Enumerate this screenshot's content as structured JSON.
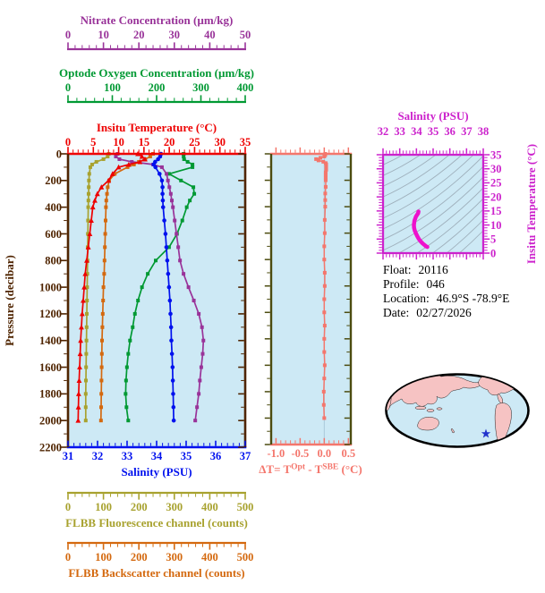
{
  "colors": {
    "page_bg": "#ffffff",
    "plot_bg": "#cde9f5",
    "pressure_axis": "#4f2400",
    "zero_gridline": "#a9c9d9",
    "info_text": "#000000",
    "map_ocean": "#cde9f5",
    "map_land": "#f6c3c3",
    "map_outline": "#000000",
    "marker_star": "#2233cc"
  },
  "info": {
    "lines": [
      {
        "label": "Float:",
        "value": "20116"
      },
      {
        "label": "Profile:",
        "value": "046"
      },
      {
        "label": "Location:",
        "value": "46.9°S  -78.9°E"
      },
      {
        "label": "Date:",
        "value": "02/27/2026"
      }
    ]
  },
  "chart_data": [
    {
      "type": "line",
      "title": "Multi-parameter float profile vs pressure",
      "ylabel": "Pressure (decibar)",
      "ylim": [
        0,
        2200
      ],
      "yticks": [
        0,
        200,
        400,
        600,
        800,
        1000,
        1200,
        1400,
        1600,
        1800,
        2000,
        2200
      ],
      "x_axes": [
        {
          "id": "nitrate",
          "label": "Nitrate Concentration (µm/kg)",
          "color": "#993399",
          "range": [
            0,
            50
          ],
          "ticks": [
            0,
            10,
            20,
            30,
            40,
            50
          ],
          "minor_step": 2
        },
        {
          "id": "oxygen",
          "label": "Optode Oxygen Concentration (µm/kg)",
          "color": "#009933",
          "range": [
            0,
            400
          ],
          "ticks": [
            0,
            100,
            200,
            300,
            400
          ],
          "minor_step": 20
        },
        {
          "id": "temperature",
          "label": "Insitu Temperature (°C)",
          "color": "#ee0000",
          "range": [
            0,
            35
          ],
          "ticks": [
            0,
            5,
            10,
            15,
            20,
            25,
            30,
            35
          ],
          "minor_step": 1
        },
        {
          "id": "salinity",
          "label": "Salinity (PSU)",
          "color": "#0011ee",
          "range": [
            31,
            37
          ],
          "ticks": [
            31,
            32,
            33,
            34,
            35,
            36,
            37
          ],
          "minor_step": 0.2
        },
        {
          "id": "fluorescence",
          "label": "FLBB Fluorescence channel (counts)",
          "color": "#a8a22f",
          "range": [
            0,
            500
          ],
          "ticks": [
            0,
            100,
            200,
            300,
            400,
            500
          ],
          "minor_step": 20
        },
        {
          "id": "backscatter",
          "label": "FLBB Backscatter channel (counts)",
          "color": "#d4690f",
          "range": [
            0,
            500
          ],
          "ticks": [
            0,
            100,
            200,
            300,
            400,
            500
          ],
          "minor_step": 20
        }
      ],
      "pressure": [
        0,
        20,
        40,
        60,
        80,
        100,
        150,
        200,
        250,
        300,
        350,
        400,
        500,
        600,
        700,
        800,
        900,
        1000,
        1100,
        1200,
        1300,
        1400,
        1500,
        1600,
        1700,
        1800,
        1900,
        2000
      ],
      "series": [
        {
          "name": "FLBB Fluorescence channel",
          "axis": "fluorescence",
          "marker": "square",
          "values": [
            115,
            112,
            100,
            80,
            68,
            63,
            60,
            59,
            58.5,
            58,
            57.5,
            57,
            56.5,
            56,
            55.5,
            55,
            54.5,
            54,
            53.5,
            53,
            52.5,
            52,
            51.5,
            51,
            50.5,
            50,
            50,
            50
          ]
        },
        {
          "name": "FLBB Backscatter channel",
          "axis": "backscatter",
          "marker": "square",
          "values": [
            240,
            232,
            218,
            200,
            186,
            168,
            132,
            116,
            112,
            110,
            108,
            107,
            106,
            105,
            104,
            103,
            102,
            100,
            99,
            98,
            97,
            96,
            95.5,
            95,
            94.5,
            94,
            93.5,
            93
          ]
        },
        {
          "name": "Optode Oxygen Concentration",
          "axis": "oxygen",
          "marker": "square",
          "values": [
            261,
            261,
            262,
            270,
            281,
            281,
            228,
            255,
            283,
            285,
            275,
            268,
            258,
            246,
            228,
            198,
            180,
            167,
            158,
            151,
            146,
            140,
            136,
            133,
            131,
            130,
            132,
            136
          ]
        },
        {
          "name": "Nitrate Concentration",
          "axis": "nitrate",
          "marker": "square",
          "values": [
            14,
            13.5,
            14.5,
            18,
            24,
            26.5,
            27.8,
            28.2,
            28.6,
            29,
            29.3,
            29.6,
            30.1,
            30.6,
            31.1,
            31.6,
            32.6,
            34,
            35.5,
            36.9,
            37.8,
            38.2,
            38,
            37.6,
            37.2,
            36.9,
            36.4,
            35.9
          ]
        },
        {
          "name": "Insitu Temperature",
          "axis": "temperature",
          "marker": "triangle",
          "values": [
            13.8,
            14.6,
            15.2,
            14.2,
            12.0,
            10.0,
            8.8,
            8.0,
            6.6,
            5.8,
            5.3,
            4.9,
            4.6,
            4.3,
            4.0,
            3.7,
            3.4,
            3.2,
            3.0,
            2.8,
            2.65,
            2.5,
            2.4,
            2.3,
            2.2,
            2.1,
            2.05,
            2.0
          ]
        },
        {
          "name": "Salinity",
          "axis": "salinity",
          "marker": "circle",
          "values": [
            34.15,
            34.12,
            34.05,
            33.95,
            33.9,
            33.96,
            34.1,
            34.18,
            34.2,
            34.2,
            34.21,
            34.22,
            34.26,
            34.3,
            34.33,
            34.36,
            34.39,
            34.42,
            34.45,
            34.47,
            34.49,
            34.5,
            34.52,
            34.54,
            34.55,
            34.56,
            34.57,
            34.58
          ]
        }
      ]
    },
    {
      "type": "line",
      "xlabel_parts": {
        "p1": "ΔT= T",
        "s1": "Opt",
        "p2": " - T",
        "s2": "SBE",
        "p3": " (°C)"
      },
      "xlim": [
        -1.1,
        0.55
      ],
      "xticks": [
        -1.0,
        -0.5,
        0.0,
        0.5
      ],
      "xtick_labels": [
        "-1.0",
        "-0.5",
        "0.0",
        "0.5"
      ],
      "ylim": [
        0,
        2200
      ],
      "color": "#f4766c",
      "frame_color": "#4c4c10",
      "pressure": [
        0,
        10,
        20,
        30,
        40,
        50,
        60,
        70,
        80,
        90,
        100,
        120,
        140,
        160,
        180,
        200,
        250,
        300,
        350,
        400,
        500,
        600,
        700,
        800,
        900,
        1000,
        1100,
        1200,
        1300,
        1400,
        1500,
        1600,
        1700,
        1800,
        1900,
        2000
      ],
      "values": [
        0.02,
        0.02,
        0.0,
        -0.08,
        -0.17,
        -0.12,
        -0.02,
        0.03,
        0.04,
        0.04,
        0.04,
        0.04,
        0.03,
        0.03,
        0.03,
        0.03,
        0.03,
        0.02,
        0.02,
        0.02,
        0.01,
        0.01,
        0.0,
        0.0,
        0.01,
        0.01,
        0.0,
        0.0,
        0.01,
        0.0,
        0.0,
        0.01,
        0.0,
        -0.01,
        -0.01,
        0.0
      ]
    },
    {
      "type": "line",
      "title": "Salinity (PSU)",
      "ylabel": "Insitu Temperature (°C)",
      "xlim": [
        32,
        38
      ],
      "xticks": [
        32,
        33,
        34,
        35,
        36,
        37,
        38
      ],
      "ylim": [
        0,
        35
      ],
      "yticks": [
        0,
        5,
        10,
        15,
        20,
        25,
        30,
        35
      ],
      "color": "#ee11cc",
      "frame_color": "#cc22cc",
      "contour_color": "#9fb0bc",
      "series_name": "T-S profile with isopycnal contours",
      "salinity": [
        34.12,
        34.1,
        33.97,
        33.88,
        33.85,
        33.86,
        33.9,
        33.97,
        34.05,
        34.15,
        34.25,
        34.38,
        34.5,
        34.58,
        34.65
      ],
      "temperature": [
        14.8,
        14.2,
        13.0,
        11.5,
        10.0,
        9.0,
        8.0,
        7.0,
        6.0,
        5.0,
        4.2,
        3.4,
        2.8,
        2.4,
        2.2
      ]
    },
    {
      "type": "map",
      "name": "world-map-pacific-centered",
      "marker": {
        "symbol": "star",
        "color": "#2233cc",
        "position_label": "46.9°S  -78.9°E"
      }
    }
  ]
}
